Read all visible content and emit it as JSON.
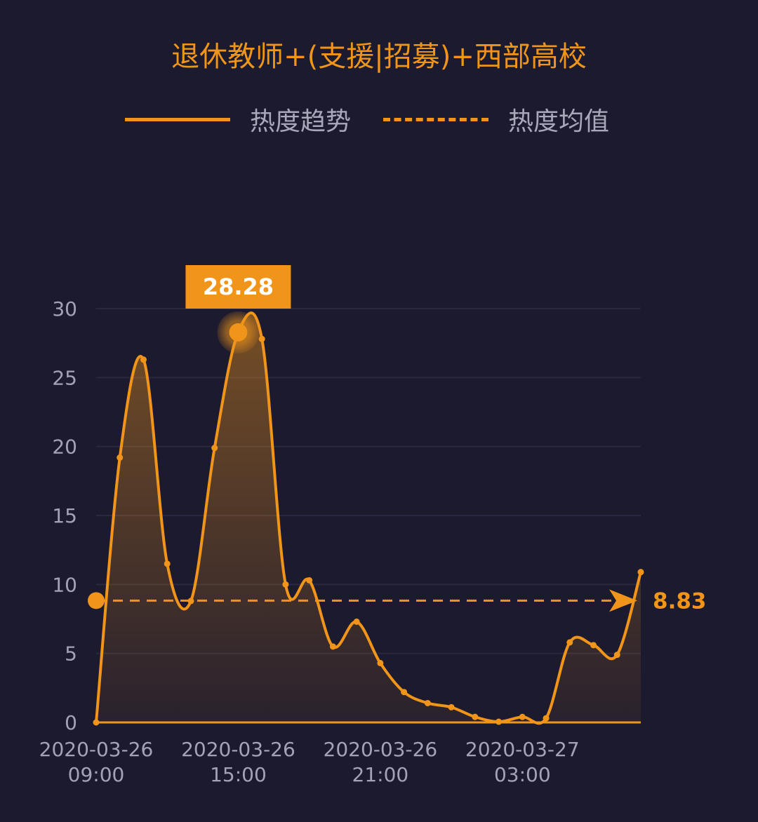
{
  "chart_data": {
    "type": "area",
    "title": "退休教师+(支援|招募)+西部高校",
    "legend": {
      "placement": "top",
      "items": [
        {
          "label": "热度趋势",
          "style": "solid"
        },
        {
          "label": "热度均值",
          "style": "dashed"
        }
      ]
    },
    "series": [
      {
        "name": "热度趋势",
        "color": "#f0951a",
        "values": [
          0,
          19.2,
          26.3,
          11.5,
          8.8,
          19.9,
          28.28,
          27.8,
          10.0,
          10.3,
          5.5,
          7.3,
          4.3,
          2.2,
          1.4,
          1.1,
          0.4,
          0.05,
          0.4,
          0.3,
          5.8,
          5.6,
          4.9,
          10.9
        ]
      }
    ],
    "x_labels": [
      {
        "index": 0,
        "date": "2020-03-26",
        "time": "09:00"
      },
      {
        "index": 6,
        "date": "2020-03-26",
        "time": "15:00"
      },
      {
        "index": 12,
        "date": "2020-03-26",
        "time": "21:00"
      },
      {
        "index": 18,
        "date": "2020-03-27",
        "time": "03:00"
      }
    ],
    "yticks": [
      "0",
      "5",
      "10",
      "15",
      "20",
      "25",
      "30"
    ],
    "ylim": [
      0,
      30
    ],
    "grid": true,
    "average": {
      "value": 8.83,
      "label": "8.83"
    },
    "peak": {
      "index": 6,
      "value": 28.28,
      "label": "28.28"
    }
  }
}
